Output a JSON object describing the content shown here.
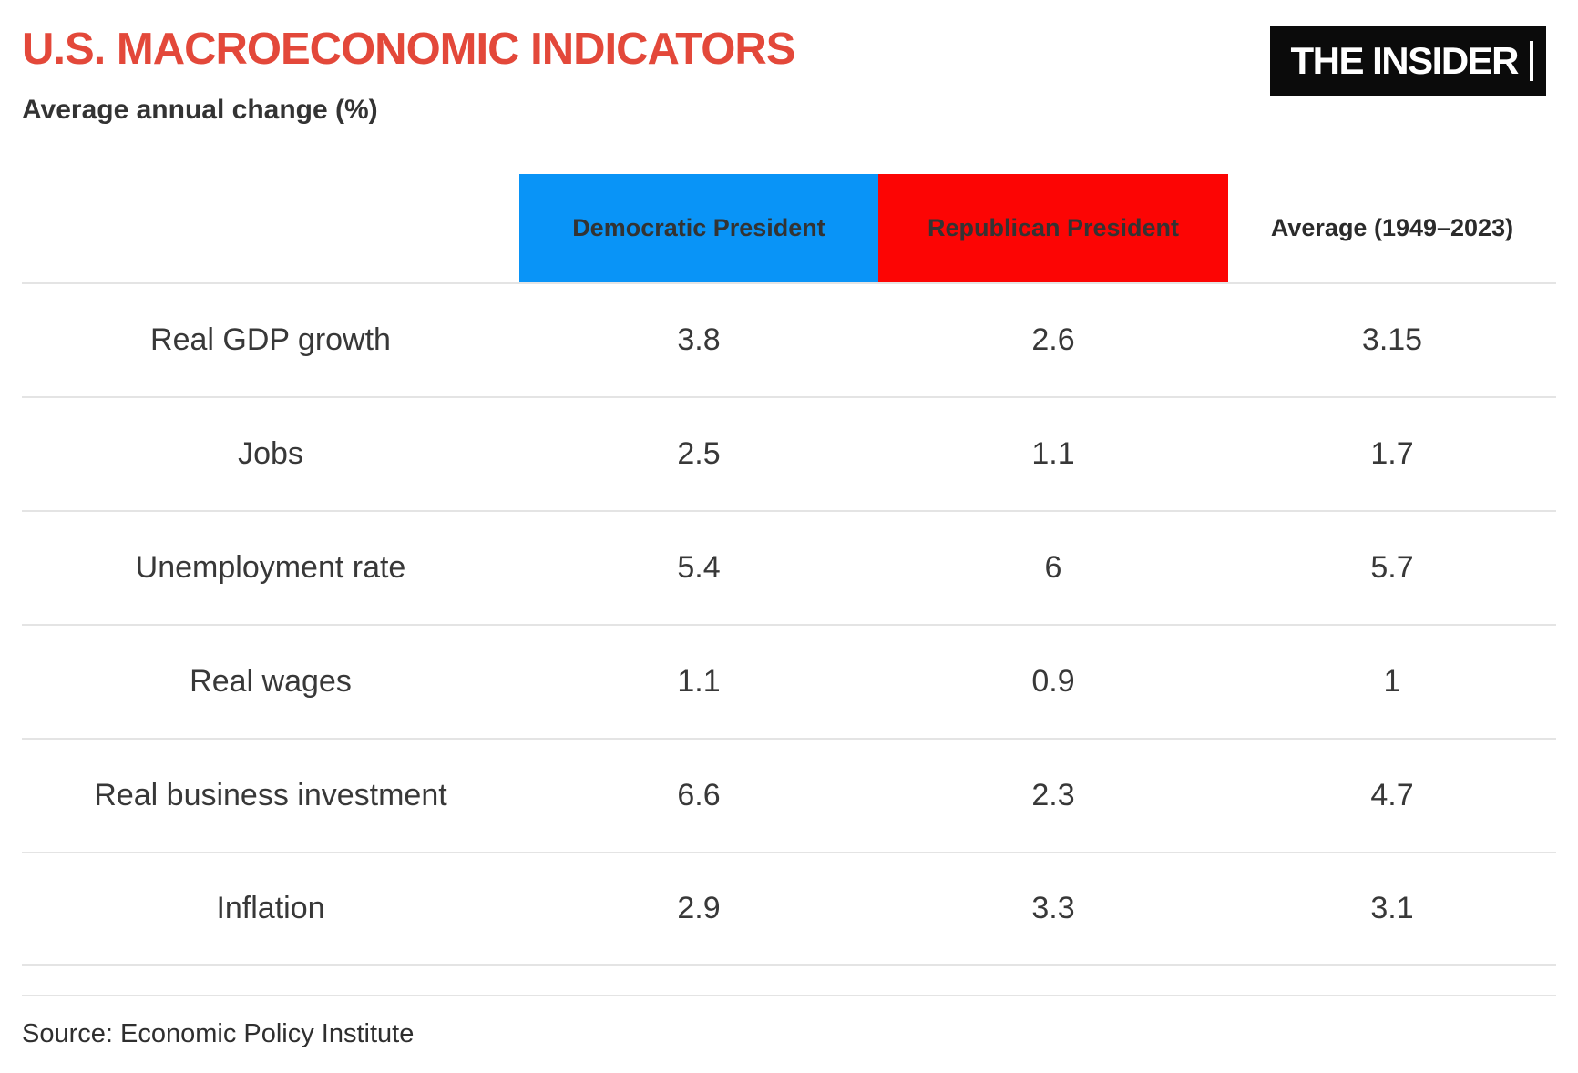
{
  "header": {
    "title": "U.S. MACROECONOMIC INDICATORS",
    "subtitle": "Average annual change (%)",
    "logo_text": "THE INSIDER"
  },
  "colors": {
    "title_red": "#e3483a",
    "democratic_blue": "#0994f7",
    "republican_red": "#fc0504",
    "logo_background": "#0b0b0b",
    "divider_gray": "#e4e4e4"
  },
  "table": {
    "col_headers": {
      "democratic": "Democratic President",
      "republican": "Republican President",
      "average": "Average (1949–2023)"
    },
    "rows": [
      {
        "label": "Real GDP growth",
        "dem": "3.8",
        "rep": "2.6",
        "avg": "3.15"
      },
      {
        "label": "Jobs",
        "dem": "2.5",
        "rep": "1.1",
        "avg": "1.7"
      },
      {
        "label": "Unemployment rate",
        "dem": "5.4",
        "rep": "6",
        "avg": "5.7"
      },
      {
        "label": "Real wages",
        "dem": "1.1",
        "rep": "0.9",
        "avg": "1"
      },
      {
        "label": "Real business investment",
        "dem": "6.6",
        "rep": "2.3",
        "avg": "4.7"
      },
      {
        "label": "Inflation",
        "dem": "2.9",
        "rep": "3.3",
        "avg": "3.1"
      }
    ]
  },
  "footer": {
    "source": "Source: Economic Policy Institute"
  },
  "chart_data": {
    "type": "table",
    "title": "U.S. MACROECONOMIC INDICATORS",
    "subtitle": "Average annual change (%)",
    "categories": [
      "Real GDP growth",
      "Jobs",
      "Unemployment rate",
      "Real wages",
      "Real business investment",
      "Inflation"
    ],
    "series": [
      {
        "name": "Democratic President",
        "values": [
          3.8,
          2.5,
          5.4,
          1.1,
          6.6,
          2.9
        ]
      },
      {
        "name": "Republican President",
        "values": [
          2.6,
          1.1,
          6.0,
          0.9,
          2.3,
          3.3
        ]
      },
      {
        "name": "Average (1949–2023)",
        "values": [
          3.15,
          1.7,
          5.7,
          1.0,
          4.7,
          3.1
        ]
      }
    ],
    "source": "Source: Economic Policy Institute",
    "legend_position": "column-headers",
    "grid": "horizontal-rules-only"
  }
}
